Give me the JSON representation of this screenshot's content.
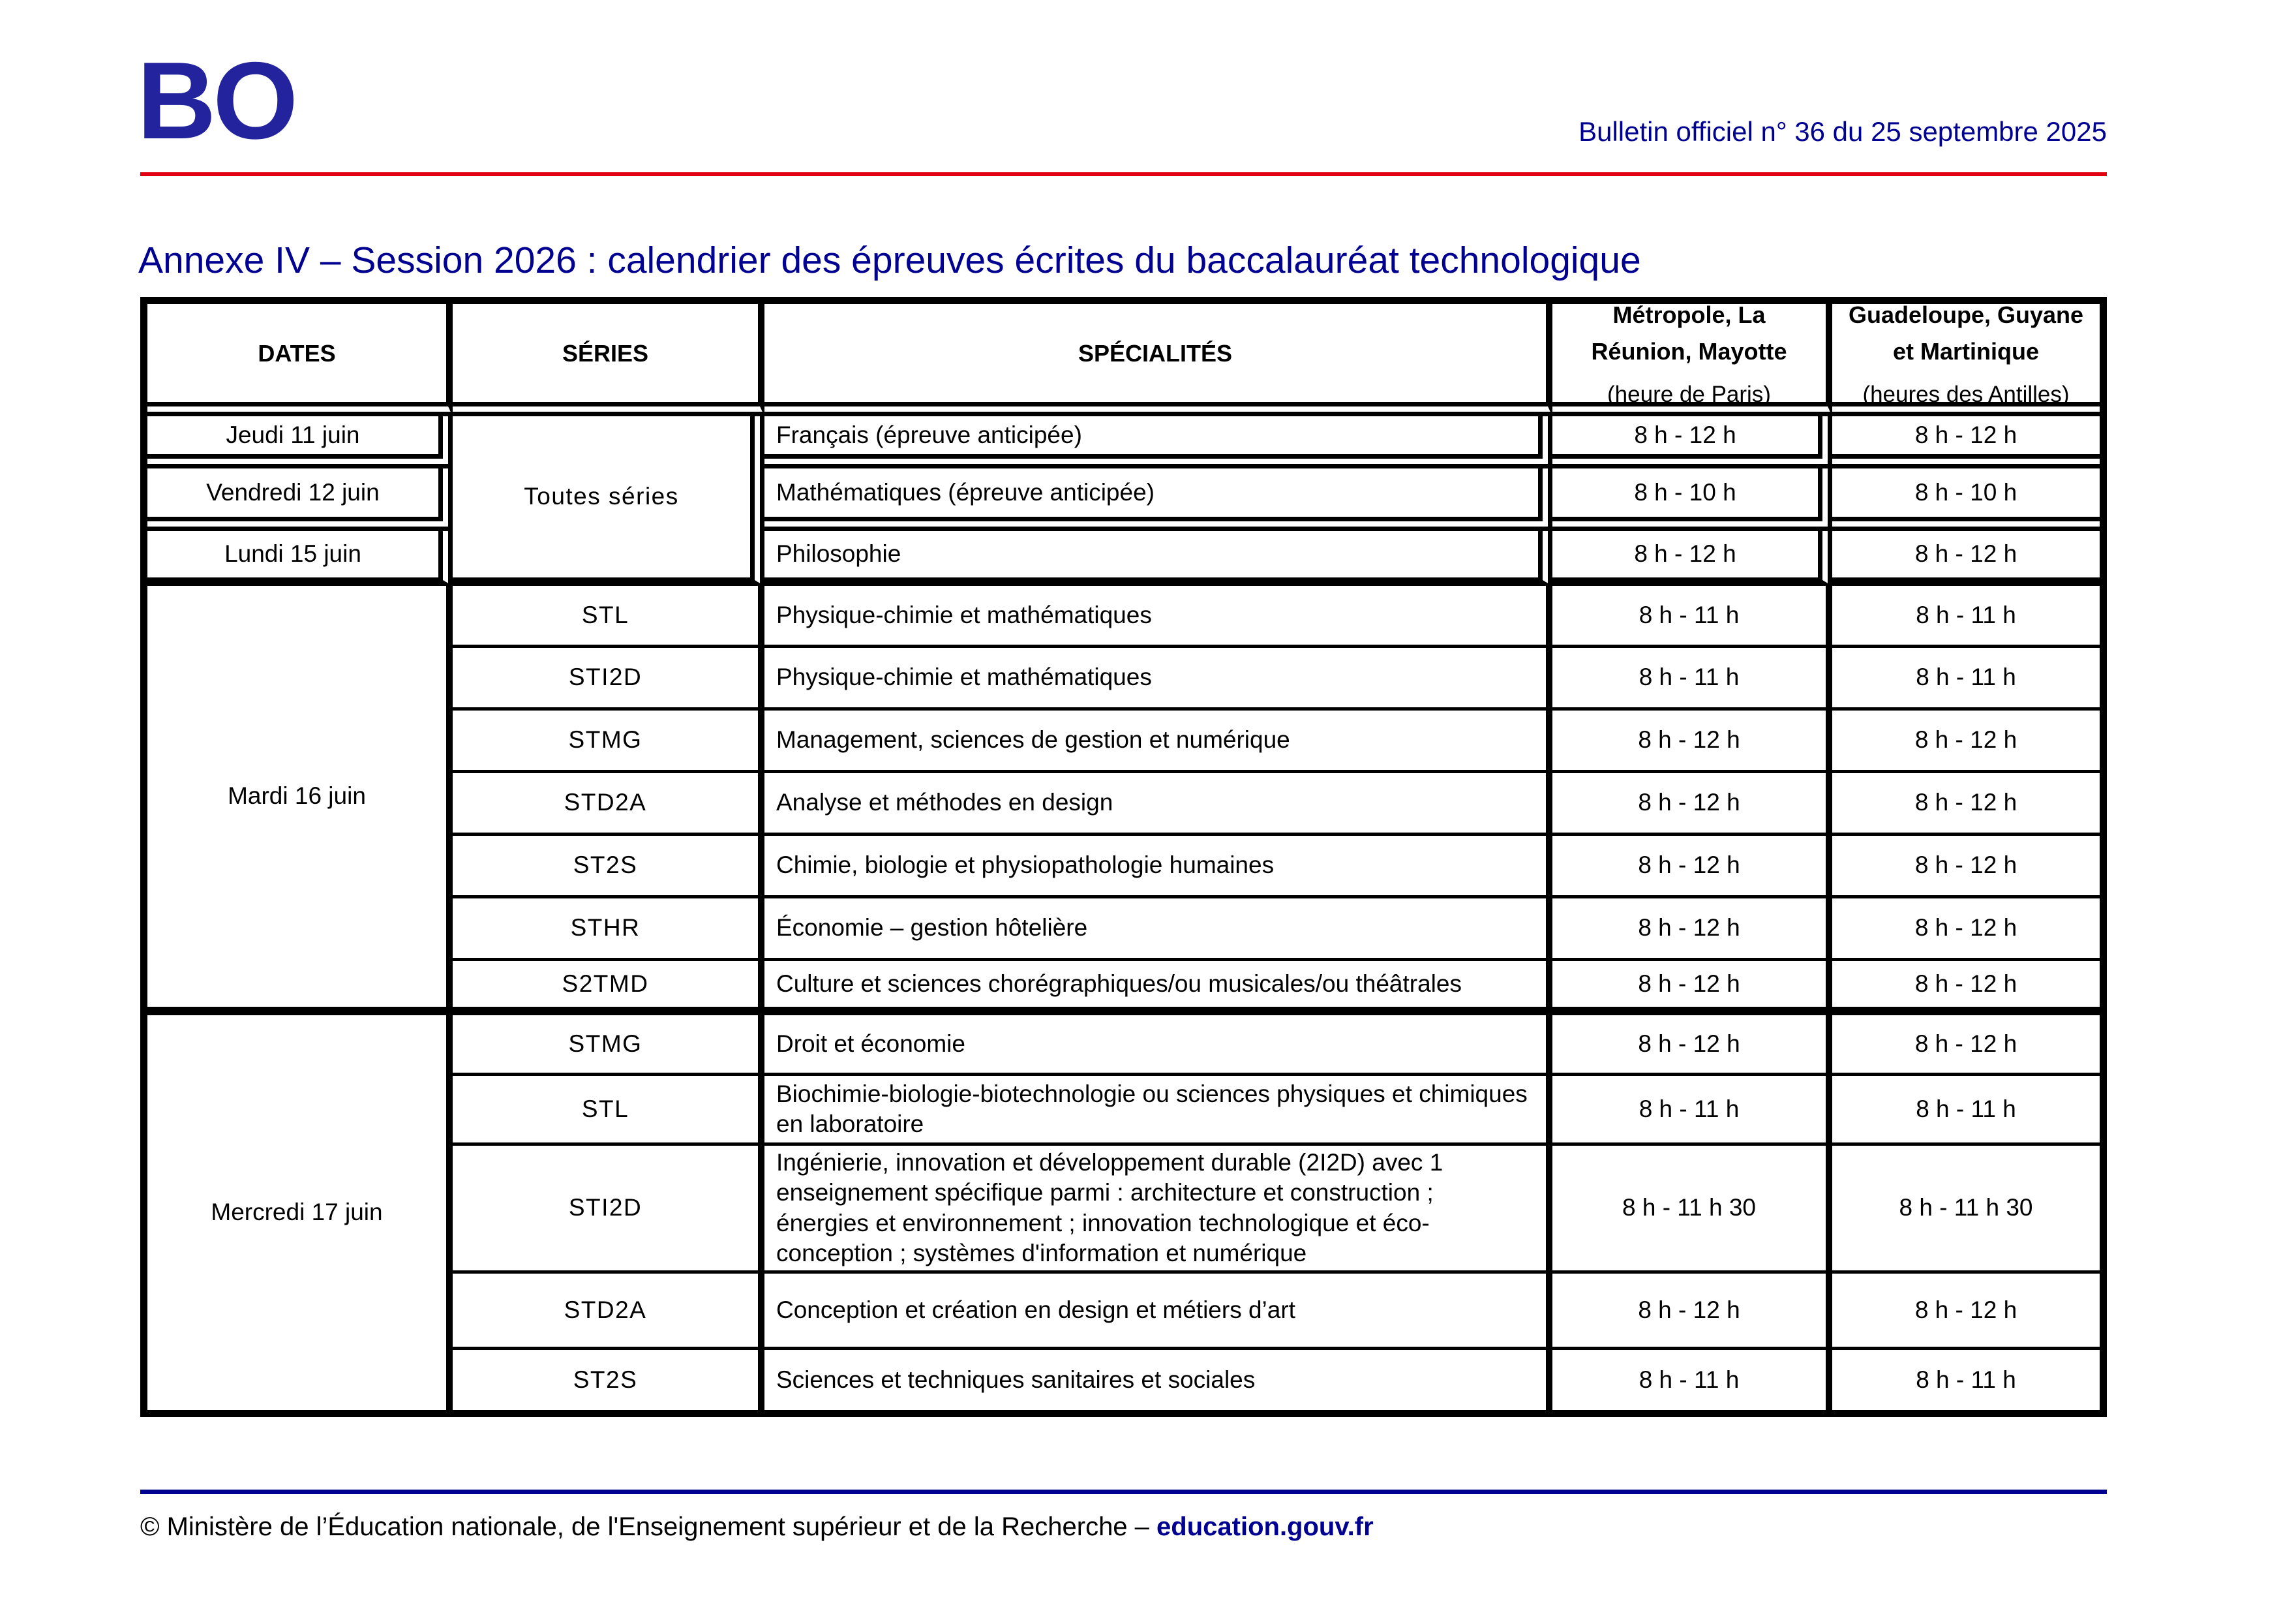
{
  "colors": {
    "navy": "#000091",
    "logo_navy": "#23239E",
    "red": "#E1000F",
    "border": "#000000"
  },
  "header": {
    "logo": "BO",
    "bulletin_info": "Bulletin officiel n° 36 du 25 septembre 2025"
  },
  "title": "Annexe IV – Session 2026 : calendrier des épreuves écrites du baccalauréat technologique",
  "table": {
    "headers": {
      "dates": "DATES",
      "series": "SÉRIES",
      "specialites": "SPÉCIALITÉS",
      "paris_lines": [
        "Métropole, La",
        "Réunion, Mayotte"
      ],
      "paris_sub": "(heure de Paris)",
      "antilles_lines": [
        "Guadeloupe, Guyane",
        "et Martinique"
      ],
      "antilles_sub": "(heures des Antilles)"
    },
    "merged": {
      "toutes_series": "Toutes séries",
      "mardi": "Mardi 16 juin",
      "mercredi": "Mercredi 17 juin"
    },
    "rows": [
      {
        "date": "Jeudi 11 juin",
        "specialty": "Français (épreuve anticipée)",
        "paris": "8 h - 12 h",
        "antilles": "8 h - 12 h"
      },
      {
        "date": "Vendredi 12 juin",
        "specialty": "Mathématiques (épreuve anticipée)",
        "paris": "8 h - 10 h",
        "antilles": "8 h - 10 h"
      },
      {
        "date": "Lundi 15 juin",
        "specialty": "Philosophie",
        "paris": "8 h - 12 h",
        "antilles": "8 h - 12 h"
      },
      {
        "series": "STL",
        "specialty": "Physique-chimie et mathématiques",
        "paris": "8 h - 11 h",
        "antilles": "8 h - 11 h"
      },
      {
        "series": "STI2D",
        "specialty": "Physique-chimie et mathématiques",
        "paris": "8 h - 11 h",
        "antilles": "8 h - 11 h"
      },
      {
        "series": "STMG",
        "specialty": "Management, sciences de gestion et numérique",
        "paris": "8 h - 12 h",
        "antilles": "8 h - 12 h"
      },
      {
        "series": "STD2A",
        "specialty": "Analyse et méthodes en design",
        "paris": "8 h - 12 h",
        "antilles": "8 h - 12 h"
      },
      {
        "series": "ST2S",
        "specialty": "Chimie, biologie et physiopathologie humaines",
        "paris": "8 h - 12 h",
        "antilles": "8 h - 12 h"
      },
      {
        "series": "STHR",
        "specialty": "Économie – gestion hôtelière",
        "paris": "8 h - 12 h",
        "antilles": "8 h - 12 h"
      },
      {
        "series": "S2TMD",
        "specialty": "Culture et sciences chorégraphiques/ou musicales/ou théâtrales",
        "paris": "8 h - 12 h",
        "antilles": "8 h - 12 h"
      },
      {
        "series": "STMG",
        "specialty": "Droit et économie",
        "paris": "8 h - 12 h",
        "antilles": "8 h - 12 h"
      },
      {
        "series": "STL",
        "specialty": "Biochimie-biologie-biotechnologie ou sciences physiques et chimiques en laboratoire",
        "paris": "8 h - 11 h",
        "antilles": "8 h - 11 h"
      },
      {
        "series": "STI2D",
        "specialty": "Ingénierie, innovation et développement durable (2I2D) avec 1 enseignement spécifique parmi : architecture et construction ; énergies et environnement ; innovation technologique et éco-conception ; systèmes d'information et numérique",
        "paris": "8 h - 11 h 30",
        "antilles": "8 h - 11 h 30"
      },
      {
        "series": "STD2A",
        "specialty": "Conception et création en design et métiers d’art",
        "paris": "8 h - 12 h",
        "antilles": "8 h - 12 h"
      },
      {
        "series": "ST2S",
        "specialty": "Sciences et techniques sanitaires et sociales",
        "paris": "8 h - 11 h",
        "antilles": "8 h - 11 h"
      }
    ]
  },
  "footer": {
    "text": "© Ministère de l’Éducation nationale, de l'Enseignement supérieur et de la Recherche – ",
    "link": "education.gouv.fr"
  }
}
